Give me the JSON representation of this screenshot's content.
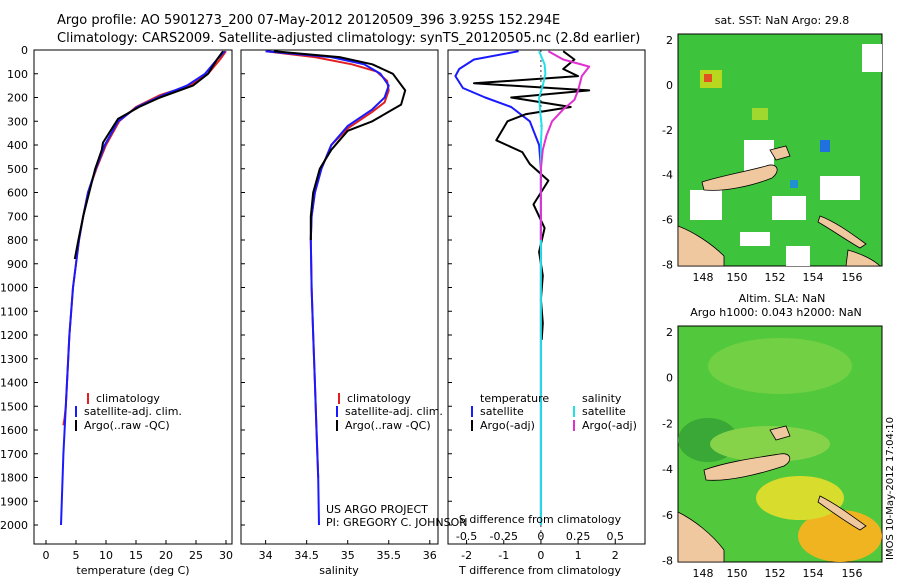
{
  "header": {
    "line1": "Argo profile: AO 5901273_200 07-May-2012 20120509_396 3.925S 152.294E",
    "line2": "Climatology: CARS2009. Satellite-adjusted climatology: synTS_20120505.nc (2.8d earlier)"
  },
  "credits": {
    "project": "US ARGO PROJECT",
    "pi": "PI: GREGORY C. JOHNSON",
    "timestamp": "IMOS 10-May-2012 17:04:10"
  },
  "colors": {
    "climatology": "#e02020",
    "satellite": "#1a1aff",
    "argo": "#000000",
    "sal_satellite": "#22e0e8",
    "sal_argo": "#e030d0",
    "map_green": "#38c038",
    "map_land": "#f0c8a0"
  },
  "chart_data": [
    {
      "id": "temperature",
      "type": "line",
      "xlabel": "temperature (deg C)",
      "xlim": [
        -2,
        31
      ],
      "xticks": [
        0,
        5,
        10,
        15,
        20,
        25,
        30
      ],
      "ylim": [
        0,
        2080
      ],
      "yticks": [
        0,
        100,
        200,
        300,
        400,
        500,
        600,
        700,
        800,
        900,
        1000,
        1100,
        1200,
        1300,
        1400,
        1500,
        1600,
        1700,
        1800,
        1900,
        2000
      ],
      "series": [
        {
          "name": "climatology",
          "color": "#e02020",
          "x": [
            30.0,
            29.0,
            27.0,
            24.0,
            19.0,
            15.0,
            12.2,
            10.0,
            8.4,
            7.0,
            6.2,
            5.5,
            5.0,
            4.5,
            4.2,
            3.9,
            3.7,
            3.5,
            3.3,
            3.1,
            2.9
          ],
          "y": [
            5,
            40,
            100,
            150,
            190,
            240,
            300,
            400,
            500,
            600,
            700,
            800,
            900,
            1000,
            1100,
            1200,
            1300,
            1400,
            1500,
            1550,
            1580
          ]
        },
        {
          "name": "satellite-adj. clim.",
          "color": "#1a1aff",
          "x": [
            29.8,
            28.5,
            26.5,
            23.5,
            19.5,
            15.2,
            12.0,
            9.8,
            8.3,
            7.0,
            6.2,
            5.5,
            5.0,
            4.5,
            4.2,
            3.9,
            3.7,
            3.5,
            3.3,
            3.1,
            2.9,
            2.7,
            2.5
          ],
          "y": [
            5,
            40,
            100,
            150,
            190,
            240,
            300,
            400,
            500,
            600,
            700,
            800,
            900,
            1000,
            1100,
            1200,
            1300,
            1400,
            1500,
            1600,
            1700,
            1850,
            2000
          ]
        },
        {
          "name": "Argo(..raw -QC)",
          "color": "#000000",
          "x": [
            29.5,
            28.5,
            27.0,
            24.5,
            19.0,
            15.5,
            12.0,
            9.5,
            9.3,
            8.2,
            7.2,
            6.2,
            5.4,
            4.8
          ],
          "y": [
            5,
            40,
            100,
            150,
            200,
            240,
            290,
            390,
            420,
            500,
            600,
            700,
            800,
            880
          ]
        }
      ],
      "legend": [
        "climatology",
        "satellite-adj. clim.",
        "Argo(..raw -QC)"
      ]
    },
    {
      "id": "salinity",
      "type": "line",
      "xlabel": "salinity",
      "xlim": [
        33.7,
        36.1
      ],
      "xticks": [
        34,
        34.5,
        35,
        35.5,
        36
      ],
      "ylim": [
        0,
        2080
      ],
      "series": [
        {
          "name": "climatology",
          "color": "#e02020",
          "x": [
            34.0,
            34.6,
            35.05,
            35.35,
            35.48,
            35.5,
            35.45,
            35.3,
            35.0,
            34.8,
            34.68,
            34.6,
            34.56,
            34.55,
            34.56,
            34.58,
            34.6,
            34.62,
            34.64
          ],
          "y": [
            5,
            30,
            60,
            90,
            130,
            170,
            220,
            260,
            330,
            400,
            500,
            600,
            700,
            800,
            1000,
            1200,
            1400,
            1600,
            1800
          ]
        },
        {
          "name": "satellite-adj. clim.",
          "color": "#1a1aff",
          "x": [
            34.0,
            34.8,
            35.2,
            35.4,
            35.5,
            35.45,
            35.3,
            35.0,
            34.8,
            34.68,
            34.6,
            34.56,
            34.55,
            34.56,
            34.58,
            34.6,
            34.62,
            34.64,
            34.65
          ],
          "y": [
            5,
            30,
            60,
            100,
            150,
            200,
            250,
            320,
            400,
            500,
            600,
            700,
            800,
            1000,
            1200,
            1400,
            1600,
            1800,
            2000
          ]
        },
        {
          "name": "Argo(..raw -QC)",
          "color": "#000000",
          "x": [
            34.1,
            34.9,
            35.3,
            35.55,
            35.7,
            35.65,
            35.5,
            35.3,
            35.0,
            34.8,
            34.66,
            34.58,
            34.55,
            34.55
          ],
          "y": [
            5,
            30,
            60,
            100,
            170,
            230,
            260,
            300,
            340,
            420,
            500,
            600,
            700,
            800
          ]
        }
      ],
      "legend": [
        "climatology",
        "satellite-adj. clim.",
        "Argo(..raw -QC)"
      ]
    },
    {
      "id": "differences",
      "type": "line",
      "xlabel": "T difference from climatology",
      "xlabel_top": "S difference from climatology",
      "xlim": [
        -2.5,
        2.8
      ],
      "xticks": [
        -2,
        -1,
        0,
        1,
        2
      ],
      "top_ticks": [
        -0.5,
        -0.25,
        0,
        0.25,
        0.5
      ],
      "ylim": [
        0,
        2080
      ],
      "series": [
        {
          "name": "temperature satellite",
          "color": "#1a1aff",
          "x": [
            -0.6,
            -1.8,
            -2.2,
            -2.3,
            -2.1,
            -1.5,
            -0.8,
            -0.3,
            -0.05,
            0.0,
            0.0,
            0.0,
            0.0,
            0.0
          ],
          "y": [
            5,
            40,
            80,
            110,
            160,
            200,
            240,
            300,
            400,
            500,
            700,
            1000,
            1500,
            2000
          ]
        },
        {
          "name": "temperature Argo(-adj)",
          "color": "#000000",
          "x": [
            0.6,
            0.9,
            0.6,
            1.0,
            -1.8,
            1.3,
            -0.8,
            0.8,
            -0.4,
            -0.9,
            -1.2,
            -0.5,
            -0.3,
            0.2,
            -0.2,
            0.1,
            -0.05,
            0.05,
            0.0,
            0.05,
            0.02
          ],
          "y": [
            5,
            40,
            80,
            110,
            140,
            170,
            200,
            240,
            270,
            300,
            380,
            430,
            480,
            550,
            650,
            750,
            850,
            950,
            1050,
            1150,
            1220
          ]
        },
        {
          "name": "salinity satellite",
          "color": "#22e0e8",
          "x": [
            -0.05,
            0.1,
            0.12,
            0.05,
            -0.05,
            -0.02,
            0.02,
            0.0,
            0.0,
            0.0,
            0.0
          ],
          "y": [
            5,
            60,
            100,
            150,
            200,
            260,
            320,
            400,
            800,
            1400,
            2000
          ]
        },
        {
          "name": "salinity Argo(-adj)",
          "color": "#e030d0",
          "x": [
            0.2,
            0.6,
            1.3,
            1.1,
            1.0,
            0.9,
            0.6,
            0.3,
            0.15,
            0.05,
            0.0,
            0.0
          ],
          "y": [
            5,
            40,
            70,
            110,
            170,
            210,
            250,
            300,
            360,
            420,
            500,
            800
          ]
        }
      ],
      "legend_titles": [
        "temperature",
        "salinity"
      ],
      "legend": [
        "satellite",
        "Argo(-adj)",
        "satellite",
        "Argo(-adj)"
      ]
    }
  ],
  "map_sst": {
    "title": "sat. SST: NaN Argo: 29.8",
    "xticks": [
      "148",
      "150",
      "152",
      "154",
      "156"
    ],
    "yticks": [
      "2",
      "0",
      "-2",
      "-4",
      "-6",
      "-8"
    ]
  },
  "map_sla": {
    "title1": "Altim. SLA: NaN",
    "title2": "Argo h1000: 0.043 h2000: NaN",
    "xticks": [
      "148",
      "150",
      "152",
      "154",
      "156"
    ],
    "yticks": [
      "2",
      "0",
      "-2",
      "-4",
      "-6",
      "-8"
    ]
  }
}
